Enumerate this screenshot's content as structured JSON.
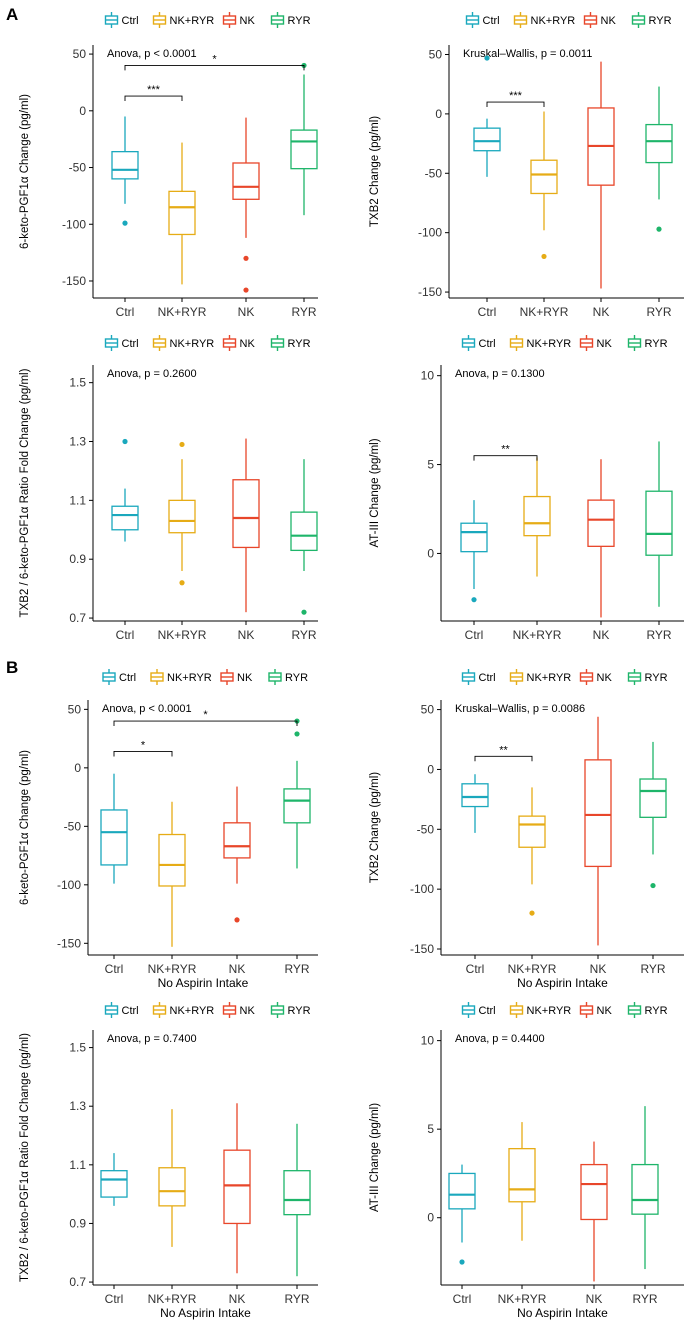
{
  "panel_labels": [
    "A",
    "B"
  ],
  "colors": {
    "Ctrl": "#1aa8bd",
    "NK+RYR": "#e6ac16",
    "NK": "#e8462a",
    "RYR": "#1eb56a"
  },
  "chart_data": [
    {
      "type": "boxplot",
      "legend": [
        "Ctrl",
        "NK+RYR",
        "NK",
        "RYR"
      ],
      "ylabel": "6-keto-PGF1α Change (pg/ml)",
      "xlabel": "",
      "ylim": [
        -165,
        58
      ],
      "yticks": [
        50,
        0,
        -50,
        -100,
        -150
      ],
      "test": "Anova, p < 0.0001",
      "categories": [
        "Ctrl",
        "NK+RYR",
        "NK",
        "RYR"
      ],
      "boxes": [
        {
          "group": "Ctrl",
          "whisker_low": -82,
          "q1": -60,
          "median": -52,
          "q3": -36,
          "whisker_high": -5,
          "outliers": [
            -99
          ]
        },
        {
          "group": "NK+RYR",
          "whisker_low": -153,
          "q1": -109,
          "median": -85,
          "q3": -71,
          "whisker_high": -28,
          "outliers": []
        },
        {
          "group": "NK",
          "whisker_low": -112,
          "q1": -78,
          "median": -67,
          "q3": -46,
          "whisker_high": -6,
          "outliers": [
            -130,
            -158
          ]
        },
        {
          "group": "RYR",
          "whisker_low": -92,
          "q1": -51,
          "median": -27,
          "q3": -17,
          "whisker_high": 32,
          "outliers": [
            40
          ]
        }
      ],
      "brackets": [
        {
          "from": "Ctrl",
          "to": "NK+RYR",
          "y": 13,
          "label": "***"
        },
        {
          "from": "Ctrl",
          "to": "RYR",
          "y": 40,
          "label": "*"
        }
      ]
    },
    {
      "type": "boxplot",
      "legend": [
        "Ctrl",
        "NK+RYR",
        "NK",
        "RYR"
      ],
      "ylabel": "TXB2 Change (pg/ml)",
      "xlabel": "",
      "ylim": [
        -155,
        58
      ],
      "yticks": [
        50,
        0,
        -50,
        -100,
        -150
      ],
      "test": "Kruskal–Wallis, p = 0.0011",
      "categories": [
        "Ctrl",
        "NK+RYR",
        "NK",
        "RYR"
      ],
      "boxes": [
        {
          "group": "Ctrl",
          "whisker_low": -53,
          "q1": -31,
          "median": -23,
          "q3": -12,
          "whisker_high": -4,
          "outliers": [
            47
          ]
        },
        {
          "group": "NK+RYR",
          "whisker_low": -98,
          "q1": -67,
          "median": -51,
          "q3": -39,
          "whisker_high": 2,
          "outliers": [
            -120
          ]
        },
        {
          "group": "NK",
          "whisker_low": -147,
          "q1": -60,
          "median": -27,
          "q3": 5,
          "whisker_high": 44,
          "outliers": []
        },
        {
          "group": "RYR",
          "whisker_low": -72,
          "q1": -41,
          "median": -23,
          "q3": -9,
          "whisker_high": 23,
          "outliers": [
            -97
          ]
        }
      ],
      "brackets": [
        {
          "from": "Ctrl",
          "to": "NK+RYR",
          "y": 10,
          "label": "***"
        }
      ]
    },
    {
      "type": "boxplot",
      "legend": [
        "Ctrl",
        "NK+RYR",
        "NK",
        "RYR"
      ],
      "ylabel": "TXB2 / 6-keto-PGF1α Ratio Fold Change (pg/ml)",
      "xlabel": "",
      "ylim": [
        0.69,
        1.56
      ],
      "yticks": [
        1.5,
        1.3,
        1.1,
        0.9,
        0.7
      ],
      "test": "Anova, p = 0.2600",
      "categories": [
        "Ctrl",
        "NK+RYR",
        "NK",
        "RYR"
      ],
      "boxes": [
        {
          "group": "Ctrl",
          "whisker_low": 0.96,
          "q1": 1.0,
          "median": 1.05,
          "q3": 1.08,
          "whisker_high": 1.14,
          "outliers": [
            1.3
          ]
        },
        {
          "group": "NK+RYR",
          "whisker_low": 0.86,
          "q1": 0.99,
          "median": 1.03,
          "q3": 1.1,
          "whisker_high": 1.24,
          "outliers": [
            1.29,
            0.82
          ]
        },
        {
          "group": "NK",
          "whisker_low": 0.72,
          "q1": 0.94,
          "median": 1.04,
          "q3": 1.17,
          "whisker_high": 1.31,
          "outliers": []
        },
        {
          "group": "RYR",
          "whisker_low": 0.86,
          "q1": 0.93,
          "median": 0.98,
          "q3": 1.06,
          "whisker_high": 1.24,
          "outliers": [
            0.72
          ]
        }
      ],
      "brackets": []
    },
    {
      "type": "boxplot",
      "legend": [
        "Ctrl",
        "NK+RYR",
        "NK",
        "RYR"
      ],
      "ylabel": "AT-III Change (pg/ml)",
      "xlabel": "",
      "ylim": [
        -3.8,
        10.6
      ],
      "yticks": [
        10,
        5,
        0
      ],
      "test": "Anova, p = 0.1300",
      "categories": [
        "Ctrl",
        "NK+RYR",
        "NK",
        "RYR"
      ],
      "boxes": [
        {
          "group": "Ctrl",
          "whisker_low": -2.0,
          "q1": 0.1,
          "median": 1.2,
          "q3": 1.7,
          "whisker_high": 3.0,
          "outliers": [
            -2.6
          ]
        },
        {
          "group": "NK+RYR",
          "whisker_low": -1.3,
          "q1": 1.0,
          "median": 1.7,
          "q3": 3.2,
          "whisker_high": 5.4,
          "outliers": []
        },
        {
          "group": "NK",
          "whisker_low": -3.6,
          "q1": 0.4,
          "median": 1.9,
          "q3": 3.0,
          "whisker_high": 5.3,
          "outliers": []
        },
        {
          "group": "RYR",
          "whisker_low": -3.0,
          "q1": -0.1,
          "median": 1.1,
          "q3": 3.5,
          "whisker_high": 6.3,
          "outliers": []
        }
      ],
      "brackets": [
        {
          "from": "Ctrl",
          "to": "NK+RYR",
          "y": 5.5,
          "label": "**"
        }
      ]
    },
    {
      "type": "boxplot",
      "legend": [
        "Ctrl",
        "NK+RYR",
        "NK",
        "RYR"
      ],
      "ylabel": "6-keto-PGF1α Change (pg/ml)",
      "xlabel": "No Aspirin Intake",
      "ylim": [
        -160,
        58
      ],
      "yticks": [
        50,
        0,
        -50,
        -100,
        -150
      ],
      "test": "Anova, p < 0.0001",
      "categories": [
        "Ctrl",
        "NK+RYR",
        "NK",
        "RYR"
      ],
      "boxes": [
        {
          "group": "Ctrl",
          "whisker_low": -99,
          "q1": -83,
          "median": -55,
          "q3": -36,
          "whisker_high": -5,
          "outliers": []
        },
        {
          "group": "NK+RYR",
          "whisker_low": -153,
          "q1": -101,
          "median": -83,
          "q3": -57,
          "whisker_high": -29,
          "outliers": []
        },
        {
          "group": "NK",
          "whisker_low": -99,
          "q1": -77,
          "median": -67,
          "q3": -47,
          "whisker_high": -16,
          "outliers": [
            -130
          ]
        },
        {
          "group": "RYR",
          "whisker_low": -86,
          "q1": -47,
          "median": -28,
          "q3": -18,
          "whisker_high": 6,
          "outliers": [
            29,
            40
          ]
        }
      ],
      "brackets": [
        {
          "from": "Ctrl",
          "to": "NK+RYR",
          "y": 14,
          "label": "*"
        },
        {
          "from": "Ctrl",
          "to": "RYR",
          "y": 40,
          "label": "*"
        }
      ]
    },
    {
      "type": "boxplot",
      "legend": [
        "Ctrl",
        "NK+RYR",
        "NK",
        "RYR"
      ],
      "ylabel": "TXB2 Change (pg/ml)",
      "xlabel": "No Aspirin Intake",
      "ylim": [
        -155,
        58
      ],
      "yticks": [
        50,
        0,
        -50,
        -100,
        -150
      ],
      "test": "Kruskal–Wallis, p = 0.0086",
      "categories": [
        "Ctrl",
        "NK+RYR",
        "NK",
        "RYR"
      ],
      "boxes": [
        {
          "group": "Ctrl",
          "whisker_low": -53,
          "q1": -31,
          "median": -23,
          "q3": -12,
          "whisker_high": -4,
          "outliers": []
        },
        {
          "group": "NK+RYR",
          "whisker_low": -96,
          "q1": -65,
          "median": -46,
          "q3": -39,
          "whisker_high": -15,
          "outliers": [
            -120
          ]
        },
        {
          "group": "NK",
          "whisker_low": -147,
          "q1": -81,
          "median": -38,
          "q3": 8,
          "whisker_high": 44,
          "outliers": []
        },
        {
          "group": "RYR",
          "whisker_low": -71,
          "q1": -40,
          "median": -18,
          "q3": -8,
          "whisker_high": 23,
          "outliers": [
            -97
          ]
        }
      ],
      "brackets": [
        {
          "from": "Ctrl",
          "to": "NK+RYR",
          "y": 11,
          "label": "**"
        }
      ]
    },
    {
      "type": "boxplot",
      "legend": [
        "Ctrl",
        "NK+RYR",
        "NK",
        "RYR"
      ],
      "ylabel": "TXB2 / 6-keto-PGF1α Ratio Fold Change (pg/ml)",
      "xlabel": "No Aspirin Intake",
      "ylim": [
        0.69,
        1.56
      ],
      "yticks": [
        1.5,
        1.3,
        1.1,
        0.9,
        0.7
      ],
      "test": "Anova, p = 0.7400",
      "categories": [
        "Ctrl",
        "NK+RYR",
        "NK",
        "RYR"
      ],
      "boxes": [
        {
          "group": "Ctrl",
          "whisker_low": 0.96,
          "q1": 0.99,
          "median": 1.05,
          "q3": 1.08,
          "whisker_high": 1.14,
          "outliers": []
        },
        {
          "group": "NK+RYR",
          "whisker_low": 0.82,
          "q1": 0.96,
          "median": 1.01,
          "q3": 1.09,
          "whisker_high": 1.29,
          "outliers": []
        },
        {
          "group": "NK",
          "whisker_low": 0.73,
          "q1": 0.9,
          "median": 1.03,
          "q3": 1.15,
          "whisker_high": 1.31,
          "outliers": []
        },
        {
          "group": "RYR",
          "whisker_low": 0.72,
          "q1": 0.93,
          "median": 0.98,
          "q3": 1.08,
          "whisker_high": 1.24,
          "outliers": []
        }
      ],
      "brackets": []
    },
    {
      "type": "boxplot",
      "legend": [
        "Ctrl",
        "NK+RYR",
        "NK",
        "RYR"
      ],
      "ylabel": "AT-III Change (pg/ml)",
      "xlabel": "No Aspirin Intake",
      "ylim": [
        -3.8,
        10.6
      ],
      "yticks": [
        10,
        5,
        0
      ],
      "test": "Anova, p = 0.4400",
      "categories": [
        "Ctrl",
        "NK+RYR",
        "NK",
        "RYR"
      ],
      "boxes": [
        {
          "group": "Ctrl",
          "whisker_low": -1.4,
          "q1": 0.5,
          "median": 1.3,
          "q3": 2.5,
          "whisker_high": 3.0,
          "outliers": [
            -2.5
          ]
        },
        {
          "group": "NK+RYR",
          "whisker_low": -1.3,
          "q1": 0.9,
          "median": 1.6,
          "q3": 3.9,
          "whisker_high": 5.4,
          "outliers": []
        },
        {
          "group": "NK",
          "whisker_low": -3.6,
          "q1": -0.1,
          "median": 1.9,
          "q3": 3.0,
          "whisker_high": 4.3,
          "outliers": []
        },
        {
          "group": "RYR",
          "whisker_low": -2.9,
          "q1": 0.2,
          "median": 1.0,
          "q3": 3.0,
          "whisker_high": 6.3,
          "outliers": []
        }
      ],
      "brackets": []
    }
  ]
}
